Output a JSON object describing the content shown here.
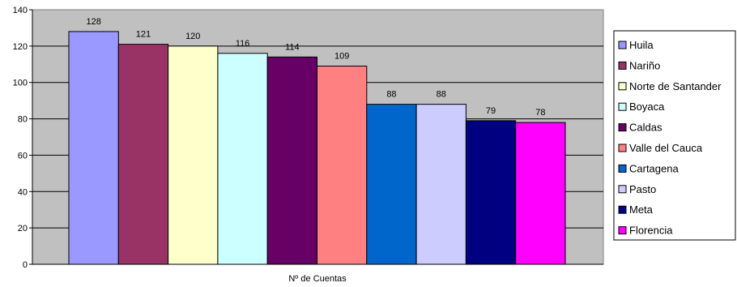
{
  "chart_data": {
    "type": "bar",
    "xlabel": "Nº de Cuentas",
    "ylim": [
      0,
      140
    ],
    "yticks": [
      0,
      20,
      40,
      60,
      80,
      100,
      120,
      140
    ],
    "grid": true,
    "legend_position": "right",
    "series": [
      {
        "name": "Huila",
        "value": 128,
        "color": "#9999FF"
      },
      {
        "name": "Nariño",
        "value": 121,
        "color": "#993366"
      },
      {
        "name": "Norte de Santander",
        "value": 120,
        "color": "#FFFFCC"
      },
      {
        "name": "Boyaca",
        "value": 116,
        "color": "#CCFFFF"
      },
      {
        "name": "Caldas",
        "value": 114,
        "color": "#660066"
      },
      {
        "name": "Valle del Cauca",
        "value": 109,
        "color": "#FF8080"
      },
      {
        "name": "Cartagena",
        "value": 88,
        "color": "#0066CC"
      },
      {
        "name": "Pasto",
        "value": 88,
        "color": "#CCCCFF"
      },
      {
        "name": "Meta",
        "value": 79,
        "color": "#000080"
      },
      {
        "name": "Florencia",
        "value": 78,
        "color": "#FF00FF"
      }
    ],
    "plot_background": "#C0C0C0"
  }
}
